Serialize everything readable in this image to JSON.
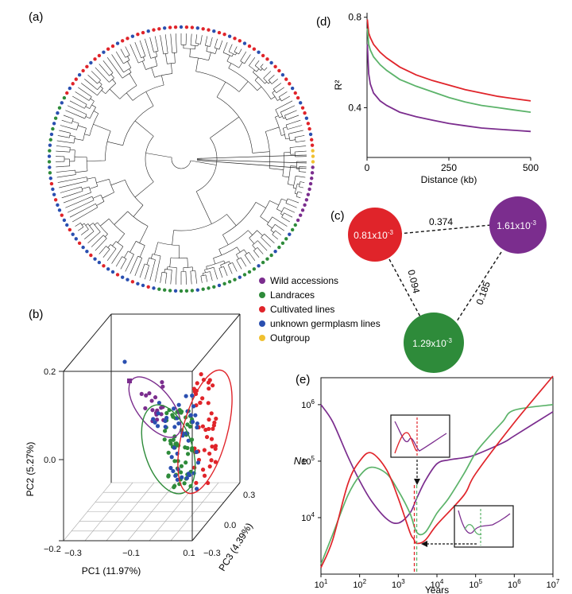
{
  "colors": {
    "wild": "#7b2d8e",
    "landraces": "#2e8b3a",
    "cultivated": "#e0242a",
    "unknown": "#2a4fb0",
    "outgroup": "#f0c030",
    "green_line": "#5cb36a",
    "black": "#111111"
  },
  "panels": {
    "a": "(a)",
    "b": "(b)",
    "c": "(c)",
    "d": "(d)",
    "e": "(e)"
  },
  "legend": [
    {
      "label": "Wild accessions",
      "color": "#7b2d8e"
    },
    {
      "label": "Landraces",
      "color": "#2e8b3a"
    },
    {
      "label": "Cultivated lines",
      "color": "#e0242a"
    },
    {
      "label": "unknown germplasm lines",
      "color": "#2a4fb0"
    },
    {
      "label": "Outgroup",
      "color": "#f0c030"
    }
  ],
  "chart_data": [
    {
      "id": "d",
      "type": "line",
      "xlabel": "Distance (kb)",
      "ylabel": "R²",
      "xlim": [
        0,
        500
      ],
      "ylim": [
        0.18,
        0.82
      ],
      "xticks": [
        "0",
        "250",
        "500"
      ],
      "yticks": [
        "0.8",
        "0.4"
      ],
      "ytick_values": [
        0.8,
        0.4
      ],
      "xtick_values": [
        0,
        250,
        500
      ],
      "series": [
        {
          "color": "#e0242a",
          "x": [
            1,
            5,
            10,
            20,
            40,
            60,
            100,
            150,
            200,
            250,
            300,
            350,
            400,
            450,
            500
          ],
          "y": [
            0.79,
            0.73,
            0.71,
            0.68,
            0.645,
            0.62,
            0.58,
            0.545,
            0.52,
            0.5,
            0.48,
            0.465,
            0.45,
            0.44,
            0.43
          ]
        },
        {
          "color": "#5cb36a",
          "x": [
            1,
            5,
            10,
            20,
            40,
            60,
            100,
            150,
            200,
            250,
            300,
            350,
            400,
            450,
            500
          ],
          "y": [
            0.75,
            0.68,
            0.655,
            0.625,
            0.59,
            0.565,
            0.525,
            0.495,
            0.47,
            0.445,
            0.425,
            0.41,
            0.4,
            0.39,
            0.38
          ]
        },
        {
          "color": "#7b2d8e",
          "x": [
            1,
            5,
            10,
            20,
            40,
            60,
            100,
            150,
            200,
            250,
            300,
            350,
            400,
            450,
            500
          ],
          "y": [
            0.68,
            0.55,
            0.505,
            0.465,
            0.43,
            0.41,
            0.38,
            0.36,
            0.345,
            0.33,
            0.32,
            0.31,
            0.305,
            0.3,
            0.295
          ]
        }
      ]
    },
    {
      "id": "c",
      "type": "network",
      "nodes": [
        {
          "id": "cultivated",
          "label": "0.81x10",
          "exp": "-3",
          "color": "#e0242a"
        },
        {
          "id": "wild",
          "label": "1.61x10",
          "exp": "-3",
          "color": "#7b2d8e"
        },
        {
          "id": "landraces",
          "label": "1.29x10",
          "exp": "-3",
          "color": "#2e8b3a"
        }
      ],
      "edges": [
        {
          "from": "cultivated",
          "to": "wild",
          "value": "0.374"
        },
        {
          "from": "cultivated",
          "to": "landraces",
          "value": "0.094"
        },
        {
          "from": "wild",
          "to": "landraces",
          "value": "0.185"
        }
      ]
    },
    {
      "id": "b",
      "type": "scatter",
      "xlabel": "PC1 (11.97%)",
      "ylabel": "PC2 (5.27%)",
      "zlabel": "PC3 (4.39%)",
      "xticks": [
        "−0.3",
        "−0.1",
        "0.1"
      ],
      "yticks": [
        "0.2",
        "0.0",
        "−0.2"
      ],
      "zticks": [
        "0.3",
        "0.0",
        "−0.3"
      ]
    },
    {
      "id": "e",
      "type": "line",
      "xlabel": "Years",
      "ylabel": "Ne",
      "xscale": "log",
      "yscale": "log",
      "xlim": [
        10,
        10000000
      ],
      "ylim": [
        1000,
        3000000
      ],
      "xticks": [
        {
          "b": "10",
          "e": "1",
          "v": 10
        },
        {
          "b": "10",
          "e": "2",
          "v": 100
        },
        {
          "b": "10",
          "e": "3",
          "v": 1000
        },
        {
          "b": "10",
          "e": "4",
          "v": 10000
        },
        {
          "b": "10",
          "e": "5",
          "v": 100000
        },
        {
          "b": "10",
          "e": "6",
          "v": 1000000
        },
        {
          "b": "10",
          "e": "7",
          "v": 10000000
        }
      ],
      "yticks": [
        {
          "b": "10",
          "e": "6",
          "v": 1000000
        },
        {
          "b": "10",
          "e": "5",
          "v": 100000
        },
        {
          "b": "10",
          "e": "4",
          "v": 10000
        }
      ],
      "series": [
        {
          "color": "#7b2d8e",
          "x": [
            10,
            20,
            50,
            100,
            200,
            500,
            1000,
            2000,
            3000,
            5000,
            10000,
            20000,
            50000,
            100000,
            500000,
            1000000,
            10000000
          ],
          "y": [
            1000000,
            500000,
            120000,
            45000,
            20000,
            9500,
            8000,
            12000,
            22000,
            45000,
            90000,
            105000,
            115000,
            130000,
            210000,
            280000,
            750000
          ]
        },
        {
          "color": "#5cb36a",
          "x": [
            10,
            20,
            50,
            100,
            200,
            500,
            1000,
            2000,
            3000,
            5000,
            10000,
            20000,
            50000,
            100000,
            200000,
            500000,
            1000000,
            10000000
          ],
          "y": [
            1500,
            5000,
            25000,
            55000,
            78000,
            60000,
            30000,
            12000,
            5500,
            5500,
            12000,
            22000,
            60000,
            140000,
            250000,
            500000,
            800000,
            1000000
          ]
        },
        {
          "color": "#e0242a",
          "x": [
            10,
            20,
            50,
            100,
            200,
            500,
            1000,
            2000,
            2500,
            3000,
            5000,
            10000,
            50000,
            100000,
            1000000,
            10000000
          ],
          "y": [
            1300,
            4000,
            40000,
            100000,
            140000,
            70000,
            22000,
            5500,
            4200,
            3500,
            4000,
            7500,
            25000,
            60000,
            480000,
            3200000
          ]
        }
      ],
      "vlines": [
        {
          "x": 2600,
          "color": "#e0242a"
        },
        {
          "x": 3000,
          "color": "#5cb36a"
        }
      ]
    }
  ]
}
